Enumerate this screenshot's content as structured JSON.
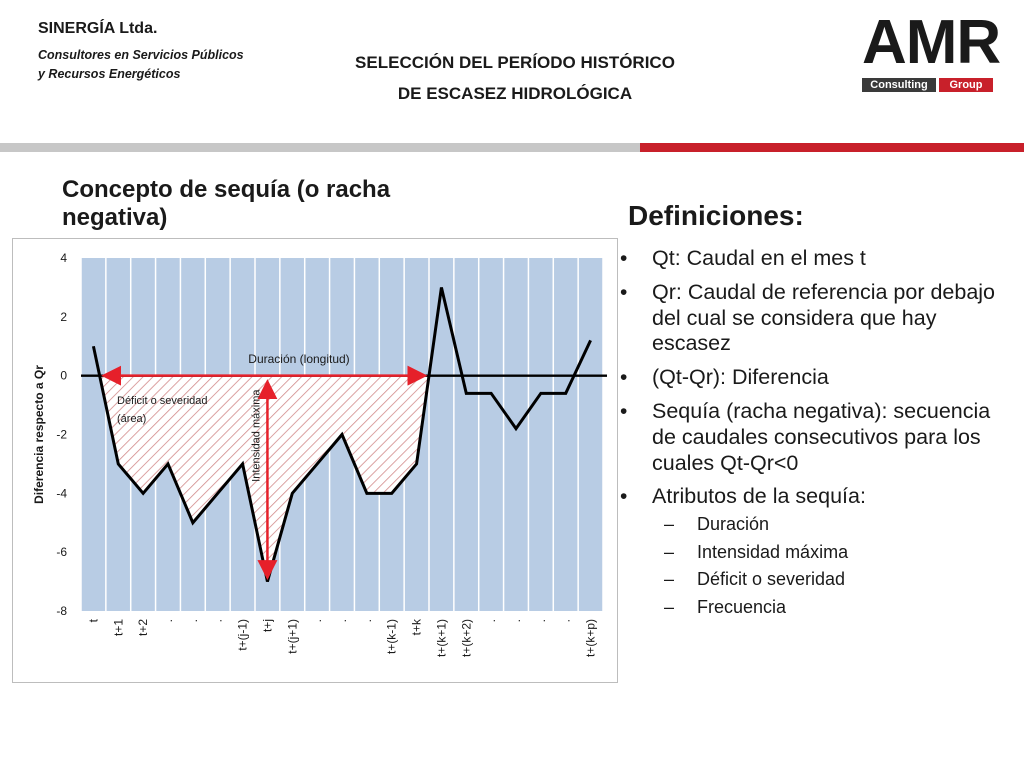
{
  "header": {
    "company": "SINERGÍA Ltda.",
    "subtitle_line1": "Consultores en Servicios Públicos",
    "subtitle_line2": "y Recursos Energéticos",
    "title_line1": "SELECCIÓN DEL PERÍODO HISTÓRICO",
    "title_line2": "DE ESCASEZ HIDROLÓGICA",
    "logo": {
      "main": "AMR",
      "consulting": "Consulting",
      "group": "Group"
    }
  },
  "colors": {
    "accent_red": "#c8202a",
    "band_grey": "#c7c7c7",
    "plot_bg": "#b8cce4",
    "line": "#000000",
    "arrow": "#e6202a"
  },
  "left_heading": "Concepto de sequía (o racha negativa)",
  "definitions": {
    "title": "Definiciones:",
    "items": [
      "Qt: Caudal en el mes t",
      "Qr: Caudal de referencia por debajo del cual se considera que hay escasez",
      "(Qt-Qr): Diferencia",
      "Sequía (racha negativa): secuencia de caudales consecutivos para los cuales Qt-Qr<0",
      "Atributos de la sequía:"
    ],
    "subitems": [
      "Duración",
      "Intensidad máxima",
      "Déficit o severidad",
      "Frecuencia"
    ]
  },
  "chart_data": {
    "type": "line",
    "ylabel": "Diferencia  respecto a Qr",
    "xlabel": "",
    "ylim": [
      -8,
      4
    ],
    "yticks": [
      4,
      2,
      0,
      -2,
      -4,
      -6,
      -8
    ],
    "grid": "vertical",
    "categories": [
      "t",
      "t+1",
      "t+2",
      ".",
      ".",
      ".",
      "t+(j-1)",
      "t+j",
      "t+(j+1)",
      ".",
      ".",
      ".",
      "t+(k-1)",
      "t+k",
      "t+(k+1)",
      "t+(k+2)",
      ".",
      ".",
      ".",
      ".",
      "t+(k+p)"
    ],
    "values": [
      1,
      -3,
      -4,
      -3,
      -5,
      -4,
      -3,
      -7,
      -4,
      -3,
      -2,
      -4,
      -4,
      -3,
      3,
      -0.6,
      -0.6,
      -1.8,
      -0.6,
      -0.6,
      1.2
    ],
    "annotations": {
      "duration": "Duración (longitud)",
      "deficit": "Déficit o severidad (área)",
      "deficit_line1": "Déficit o severidad",
      "deficit_line2": "(área)",
      "max_intensity": "Intensidad máxima"
    }
  }
}
